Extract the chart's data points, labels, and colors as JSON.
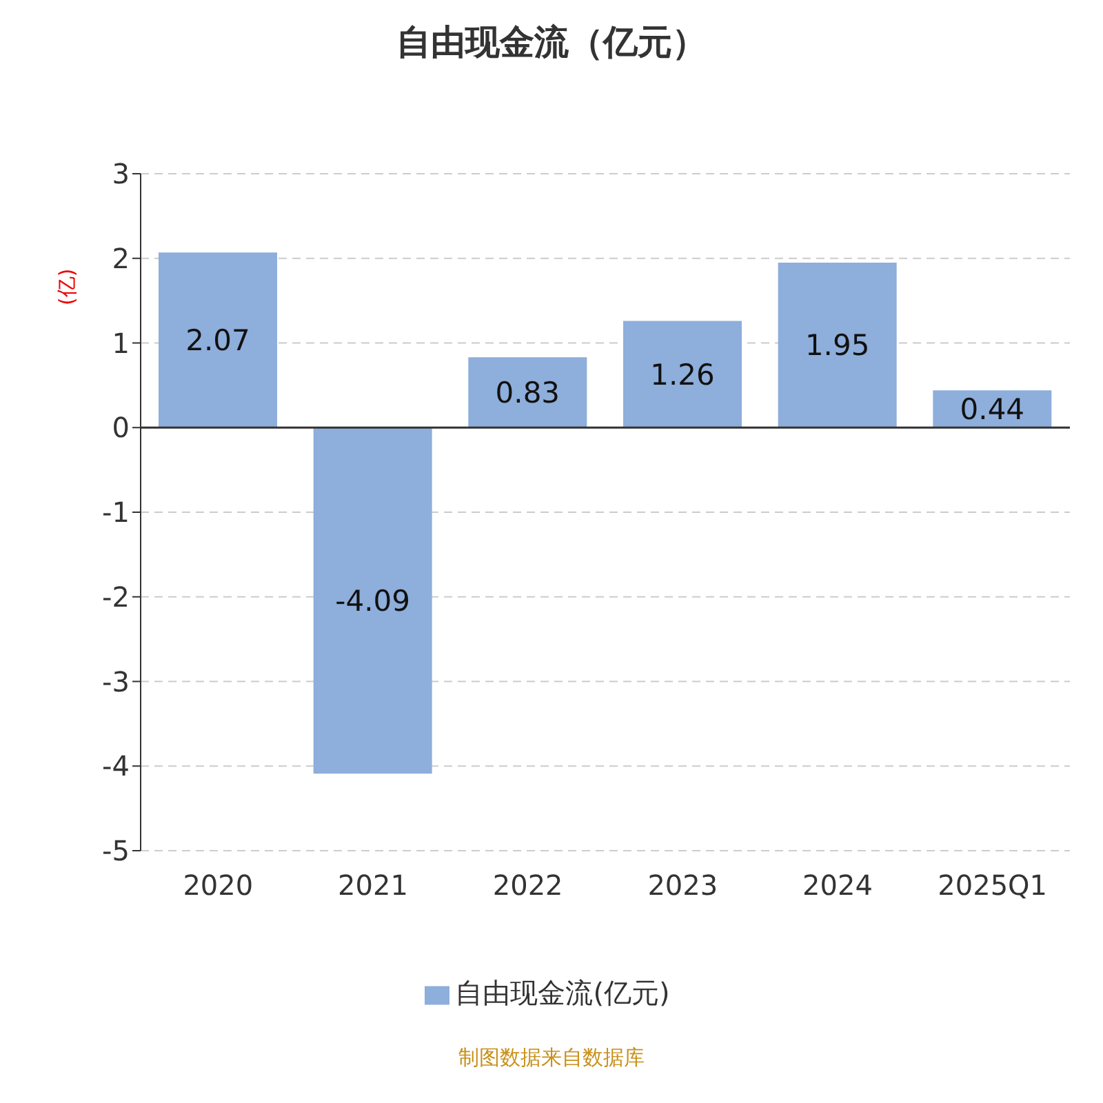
{
  "chart_data": {
    "type": "bar",
    "title": "自由现金流（亿元）",
    "ylabel": "(亿)",
    "categories": [
      "2020",
      "2021",
      "2022",
      "2023",
      "2024",
      "2025Q1"
    ],
    "series": [
      {
        "name": "自由现金流(亿元)",
        "color": "#8eaedb",
        "values": [
          2.07,
          -4.09,
          0.83,
          1.26,
          1.95,
          0.44
        ]
      }
    ],
    "ylim": [
      -5,
      3
    ],
    "yticks": [
      -5,
      -4,
      -3,
      -2,
      -1,
      0,
      1,
      2,
      3
    ],
    "grid": "y",
    "legend": "bottom",
    "data_labels": true,
    "annotations": [
      "制图数据来自数据库"
    ]
  }
}
